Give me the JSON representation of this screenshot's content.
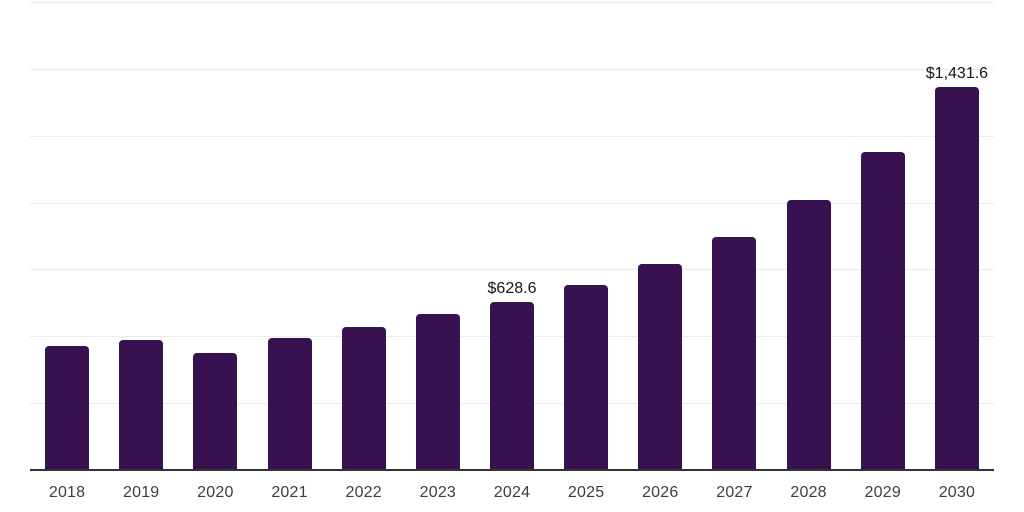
{
  "chart_data": {
    "type": "bar",
    "categories": [
      "2018",
      "2019",
      "2020",
      "2021",
      "2022",
      "2023",
      "2024",
      "2025",
      "2026",
      "2027",
      "2028",
      "2029",
      "2030"
    ],
    "values": [
      464,
      486,
      438,
      494,
      535,
      583,
      628.6,
      692,
      771,
      872,
      1010,
      1190,
      1431.6
    ],
    "data_labels": [
      "",
      "",
      "",
      "",
      "",
      "",
      "$628.6",
      "",
      "",
      "",
      "",
      "",
      "$1,431.6"
    ],
    "ylim": [
      0,
      1750
    ],
    "grid_interval": 250,
    "grid": true,
    "legend": false,
    "colors": {
      "bar": "#371150",
      "gridline": "#ececec",
      "axis_line": "#333333",
      "tick_label": "#3d3d3d",
      "data_label": "#161616",
      "background": "#ffffff"
    }
  }
}
